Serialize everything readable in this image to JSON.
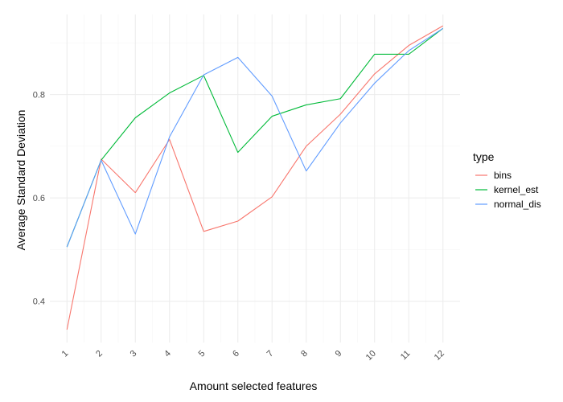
{
  "chart_data": {
    "type": "line",
    "xlabel": "Amount selected features",
    "ylabel": "Average Standard Deviation",
    "x": [
      1,
      2,
      3,
      4,
      5,
      6,
      7,
      8,
      9,
      10,
      11,
      12
    ],
    "x_tick_labels": [
      "1",
      "2",
      "3",
      "4",
      "5",
      "6",
      "7",
      "8",
      "9",
      "10",
      "11",
      "12"
    ],
    "xlim": [
      0.5,
      12.5
    ],
    "ylim": [
      0.32,
      0.955
    ],
    "y_ticks": [
      0.4,
      0.6,
      0.8
    ],
    "y_tick_labels": [
      "0.4",
      "0.6",
      "0.8"
    ],
    "grid": true,
    "legend": {
      "title": "type",
      "position": "right"
    },
    "series": [
      {
        "name": "bins",
        "color": "#F8766D",
        "values": [
          0.345,
          0.675,
          0.61,
          0.713,
          0.535,
          0.555,
          0.602,
          0.7,
          0.762,
          0.84,
          0.895,
          0.933
        ]
      },
      {
        "name": "kernel_est",
        "color": "#00BA38",
        "values": [
          0.505,
          0.673,
          0.755,
          0.803,
          0.837,
          0.688,
          0.758,
          0.78,
          0.792,
          0.878,
          0.878,
          0.928
        ]
      },
      {
        "name": "normal_dis",
        "color": "#619CFF",
        "values": [
          0.505,
          0.673,
          0.53,
          0.718,
          0.838,
          0.872,
          0.797,
          0.652,
          0.745,
          0.822,
          0.885,
          0.928
        ]
      }
    ]
  }
}
